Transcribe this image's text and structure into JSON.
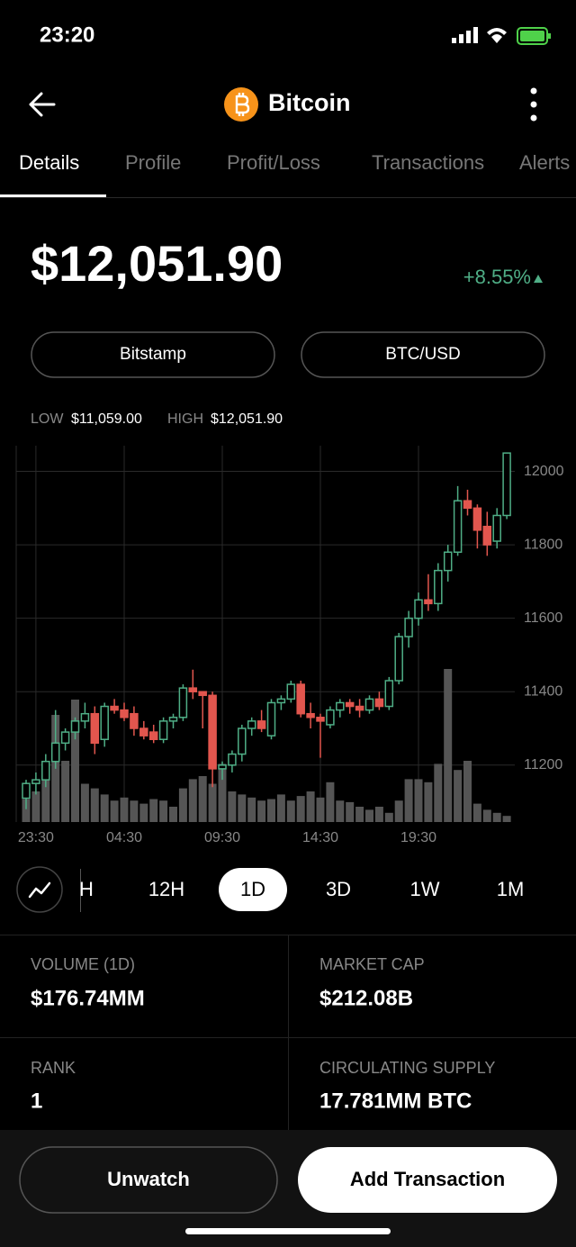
{
  "status": {
    "time": "23:20"
  },
  "header": {
    "title": "Bitcoin"
  },
  "tabs": [
    "Details",
    "Profile",
    "Profit/Loss",
    "Transactions",
    "Alerts"
  ],
  "price": {
    "value": "$12,051.90",
    "change": "+8.55%"
  },
  "market": {
    "exchange": "Bitstamp",
    "pair": "BTC/USD"
  },
  "range": {
    "low_label": "LOW",
    "low": "$11,059.00",
    "high_label": "HIGH",
    "high": "$12,051.90"
  },
  "chart_data": {
    "type": "candlestick",
    "categories": [
      null,
      "23:30",
      null,
      null,
      null,
      null,
      null,
      null,
      null,
      null,
      "04:30",
      null,
      null,
      null,
      null,
      null,
      null,
      null,
      null,
      null,
      "09:30",
      null,
      null,
      null,
      null,
      null,
      null,
      null,
      null,
      null,
      "14:30",
      null,
      null,
      null,
      null,
      null,
      null,
      null,
      null,
      null,
      "19:30",
      null,
      null,
      null,
      null,
      null,
      null,
      null,
      null,
      null
    ],
    "open": [
      11110,
      11150,
      11160,
      11210,
      11260,
      11290,
      11320,
      11340,
      11270,
      11360,
      11350,
      11340,
      11300,
      11290,
      11270,
      11320,
      11330,
      11410,
      11400,
      11390,
      11190,
      11200,
      11230,
      11300,
      11320,
      11280,
      11370,
      11380,
      11420,
      11340,
      11330,
      11310,
      11350,
      11370,
      11360,
      11350,
      11380,
      11360,
      11430,
      11550,
      11600,
      11650,
      11640,
      11730,
      11780,
      11920,
      11900,
      11850,
      11810,
      11880
    ],
    "high": [
      11160,
      11180,
      11230,
      11350,
      11300,
      11330,
      11370,
      11360,
      11370,
      11380,
      11370,
      11360,
      11320,
      11310,
      11330,
      11340,
      11420,
      11460,
      11400,
      11400,
      11210,
      11240,
      11310,
      11330,
      11350,
      11380,
      11390,
      11430,
      11430,
      11370,
      11340,
      11360,
      11380,
      11380,
      11380,
      11390,
      11400,
      11440,
      11560,
      11620,
      11670,
      11720,
      11750,
      11800,
      11960,
      11950,
      11910,
      11890,
      11900,
      12050
    ],
    "low": [
      11080,
      11120,
      11140,
      11190,
      11240,
      11270,
      11300,
      11230,
      11250,
      11340,
      11320,
      11280,
      11270,
      11260,
      11260,
      11300,
      11320,
      11380,
      11300,
      11140,
      11160,
      11180,
      11210,
      11280,
      11290,
      11270,
      11350,
      11370,
      11330,
      11300,
      11220,
      11300,
      11330,
      11340,
      11330,
      11340,
      11350,
      11350,
      11420,
      11520,
      11580,
      11620,
      11620,
      11700,
      11770,
      11880,
      11790,
      11770,
      11790,
      11870
    ],
    "close": [
      11150,
      11160,
      11210,
      11260,
      11290,
      11320,
      11340,
      11260,
      11360,
      11350,
      11330,
      11300,
      11280,
      11270,
      11320,
      11330,
      11410,
      11400,
      11390,
      11190,
      11200,
      11230,
      11300,
      11320,
      11300,
      11370,
      11380,
      11420,
      11340,
      11330,
      11320,
      11350,
      11370,
      11360,
      11350,
      11380,
      11360,
      11430,
      11550,
      11600,
      11650,
      11640,
      11730,
      11780,
      11920,
      11900,
      11840,
      11800,
      11880,
      12050
    ],
    "volume": [
      15,
      20,
      30,
      70,
      40,
      80,
      25,
      22,
      18,
      14,
      16,
      14,
      12,
      15,
      14,
      10,
      22,
      28,
      30,
      25,
      38,
      20,
      18,
      16,
      14,
      15,
      18,
      14,
      17,
      20,
      16,
      26,
      14,
      13,
      10,
      8,
      10,
      6,
      14,
      28,
      28,
      26,
      38,
      100,
      34,
      40,
      12,
      8,
      6,
      4
    ],
    "up_color": "#4fae86",
    "down_color": "#e2564e",
    "volume_color": "#555555",
    "ylim": [
      11045,
      12070
    ],
    "yticks": [
      11200,
      11400,
      11600,
      11800,
      12000
    ],
    "grid": true
  },
  "periods": {
    "items": [
      "H",
      "12H",
      "1D",
      "3D",
      "1W",
      "1M"
    ],
    "active": "1D"
  },
  "stats": [
    {
      "label": "VOLUME (1D)",
      "value": "$176.74MM"
    },
    {
      "label": "MARKET CAP",
      "value": "$212.08B"
    },
    {
      "label": "RANK",
      "value": "1"
    },
    {
      "label": "CIRCULATING SUPPLY",
      "value": "17.781MM BTC"
    }
  ],
  "actions": {
    "secondary": "Unwatch",
    "primary": "Add Transaction"
  }
}
